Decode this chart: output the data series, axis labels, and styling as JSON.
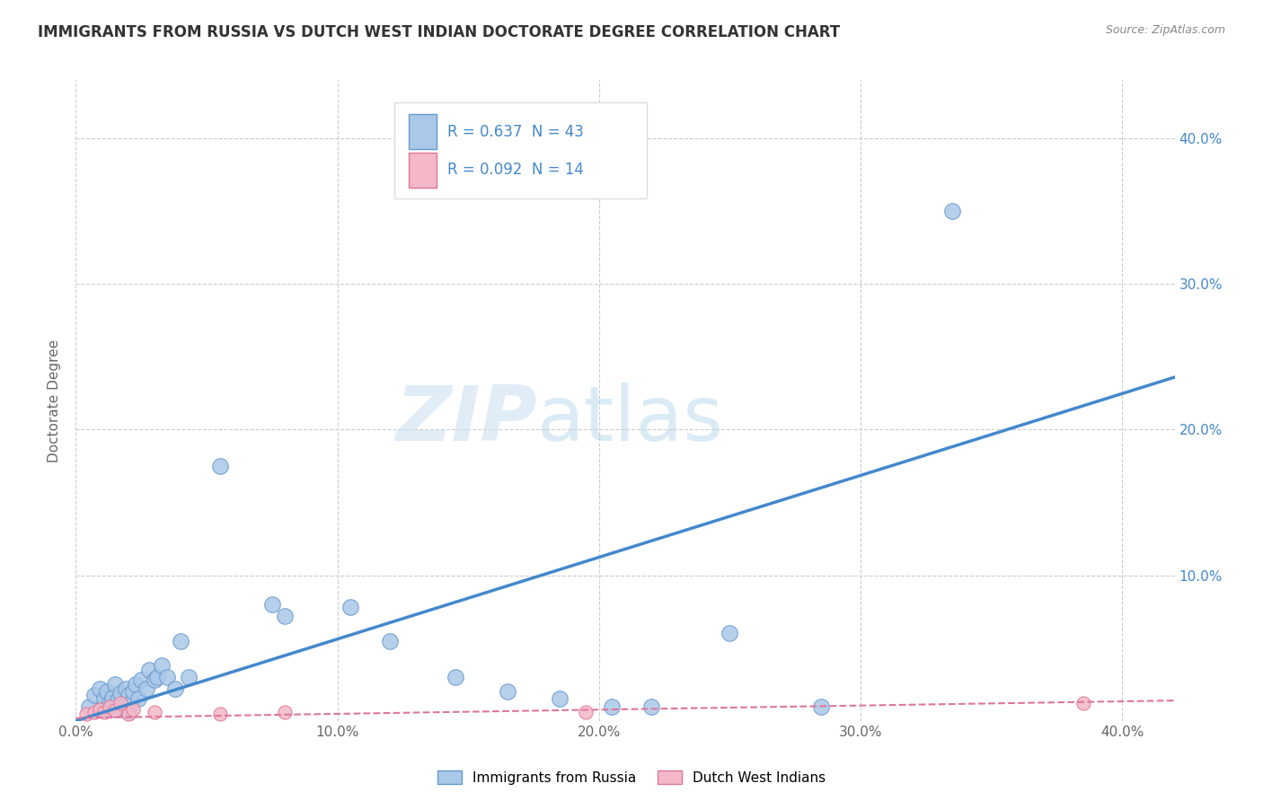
{
  "title": "IMMIGRANTS FROM RUSSIA VS DUTCH WEST INDIAN DOCTORATE DEGREE CORRELATION CHART",
  "source": "Source: ZipAtlas.com",
  "ylabel": "Doctorate Degree",
  "xlim": [
    0.0,
    0.42
  ],
  "ylim": [
    0.0,
    0.44
  ],
  "xtick_labels": [
    "0.0%",
    "",
    "10.0%",
    "",
    "20.0%",
    "",
    "30.0%",
    "",
    "40.0%"
  ],
  "xtick_vals": [
    0.0,
    0.05,
    0.1,
    0.15,
    0.2,
    0.25,
    0.3,
    0.35,
    0.4
  ],
  "xtick_display_labels": [
    "0.0%",
    "10.0%",
    "20.0%",
    "30.0%",
    "40.0%"
  ],
  "xtick_display_vals": [
    0.0,
    0.1,
    0.2,
    0.3,
    0.4
  ],
  "ytick_vals": [
    0.1,
    0.2,
    0.3,
    0.4
  ],
  "ytick_right_labels": [
    "10.0%",
    "20.0%",
    "30.0%",
    "40.0%"
  ],
  "legend_r1": "R = 0.637  N = 43",
  "legend_r2": "R = 0.092  N = 14",
  "russia_color": "#aac8e8",
  "russia_edge_color": "#6699cc",
  "dwi_color": "#f4b8c8",
  "dwi_edge_color": "#dd7799",
  "russia_line_color": "#4488cc",
  "dwi_line_color": "#dd7799",
  "watermark_zip": "ZIP",
  "watermark_atlas": "atlas",
  "russia_scatter_x": [
    0.005,
    0.007,
    0.009,
    0.01,
    0.011,
    0.012,
    0.013,
    0.014,
    0.015,
    0.015,
    0.016,
    0.017,
    0.018,
    0.019,
    0.02,
    0.02,
    0.021,
    0.022,
    0.023,
    0.024,
    0.025,
    0.027,
    0.028,
    0.03,
    0.031,
    0.033,
    0.035,
    0.038,
    0.04,
    0.043,
    0.055,
    0.075,
    0.08,
    0.105,
    0.12,
    0.145,
    0.165,
    0.185,
    0.205,
    0.22,
    0.25,
    0.285,
    0.335
  ],
  "russia_scatter_y": [
    0.01,
    0.018,
    0.022,
    0.008,
    0.015,
    0.02,
    0.012,
    0.016,
    0.008,
    0.025,
    0.014,
    0.019,
    0.01,
    0.022,
    0.006,
    0.018,
    0.012,
    0.02,
    0.025,
    0.015,
    0.028,
    0.022,
    0.035,
    0.028,
    0.03,
    0.038,
    0.03,
    0.022,
    0.055,
    0.03,
    0.175,
    0.08,
    0.072,
    0.078,
    0.055,
    0.03,
    0.02,
    0.015,
    0.01,
    0.01,
    0.06,
    0.01,
    0.35
  ],
  "dwi_scatter_x": [
    0.004,
    0.007,
    0.009,
    0.011,
    0.013,
    0.015,
    0.017,
    0.02,
    0.022,
    0.03,
    0.055,
    0.08,
    0.195,
    0.385
  ],
  "dwi_scatter_y": [
    0.005,
    0.006,
    0.008,
    0.006,
    0.01,
    0.007,
    0.012,
    0.005,
    0.008,
    0.006,
    0.005,
    0.006,
    0.006,
    0.012
  ],
  "russia_trendline": [
    0.0,
    0.0,
    0.42,
    0.236
  ],
  "dwi_trendline": [
    0.0,
    0.002,
    0.42,
    0.014
  ],
  "background_color": "#ffffff",
  "grid_color": "#cccccc",
  "title_color": "#333333",
  "axis_label_color": "#666666",
  "right_axis_color": "#4488cc"
}
